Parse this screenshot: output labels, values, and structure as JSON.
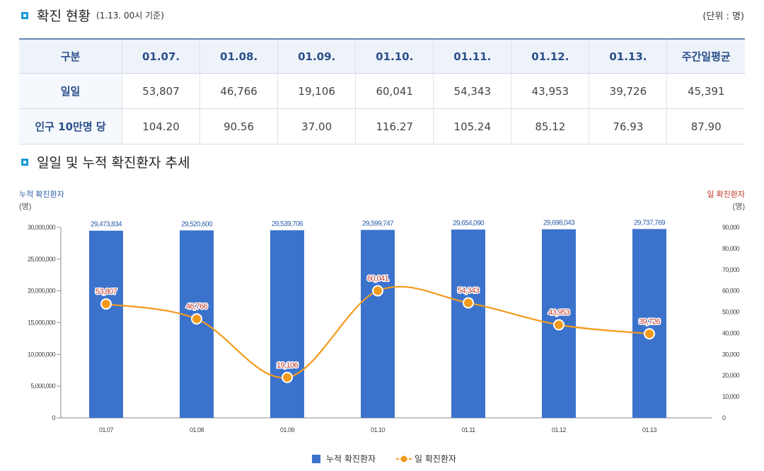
{
  "section1": {
    "title": "확진 현황",
    "subtitle": "(1.13. 00시 기준)",
    "unit": "(단위 : 명)"
  },
  "table": {
    "headers": [
      "구분",
      "01.07.",
      "01.08.",
      "01.09.",
      "01.10.",
      "01.11.",
      "01.12.",
      "01.13.",
      "주간일평균"
    ],
    "rows": [
      {
        "label": "일일",
        "values": [
          "53,807",
          "46,766",
          "19,106",
          "60,041",
          "54,343",
          "43,953",
          "39,726",
          "45,391"
        ]
      },
      {
        "label": "인구 10만명 당",
        "values": [
          "104.20",
          "90.56",
          "37.00",
          "116.27",
          "105.24",
          "85.12",
          "76.93",
          "87.90"
        ]
      }
    ]
  },
  "section2": {
    "title": "일일 및 누적 확진환자 추세"
  },
  "colors": {
    "bar": "#3b73cc",
    "line": "#f39a1c",
    "left_axis": "#2e5fa8",
    "right_axis": "#c0392b"
  },
  "chart_data": {
    "type": "bar+line",
    "categories": [
      "01.07",
      "01.08",
      "01.09",
      "01.10",
      "01.11",
      "01.12",
      "01.13"
    ],
    "series": [
      {
        "name": "누적 확진환자",
        "type": "bar",
        "axis": "left",
        "values": [
          29473834,
          29520600,
          29539706,
          29599747,
          29654090,
          29698043,
          29737769
        ],
        "labels": [
          "29,473,834",
          "29,520,600",
          "29,539,706",
          "29,599,747",
          "29,654,090",
          "29,698,043",
          "29,737,769"
        ]
      },
      {
        "name": "일 확진환자",
        "type": "line",
        "axis": "right",
        "values": [
          53807,
          46766,
          19106,
          60041,
          54343,
          43953,
          39726
        ],
        "labels": [
          "53,807",
          "46,766",
          "19,106",
          "60,041",
          "54,343",
          "43,953",
          "39,726"
        ]
      }
    ],
    "left_axis": {
      "title": "누적 확진환자",
      "unit": "(명)",
      "range": [
        0,
        30000000
      ],
      "ticks": [
        "0",
        "5,000,000",
        "10,000,000",
        "15,000,000",
        "20,000,000",
        "25,000,000",
        "30,000,000"
      ]
    },
    "right_axis": {
      "title": "일 확진환자",
      "unit": "(명)",
      "range": [
        0,
        90000
      ],
      "ticks": [
        "0",
        "10,000",
        "20,000",
        "30,000",
        "40,000",
        "50,000",
        "60,000",
        "70,000",
        "80,000",
        "90,000"
      ]
    },
    "legend": [
      "누적 확진환자",
      "일 확진환자"
    ],
    "legend_position": "bottom"
  }
}
